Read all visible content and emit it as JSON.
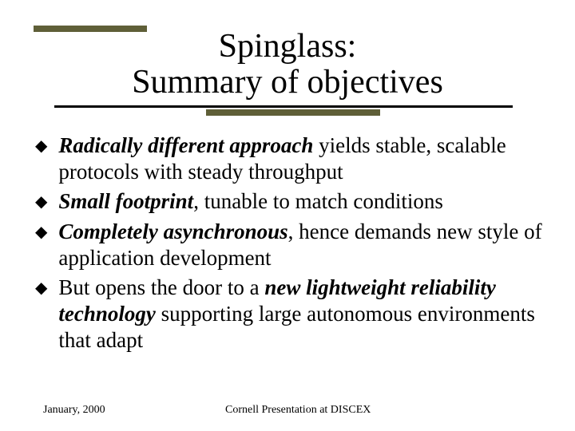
{
  "title": {
    "line1": "Spinglass:",
    "line2": "Summary of objectives"
  },
  "bullets": [
    {
      "segments": [
        {
          "text": "Radically different approach",
          "em": true
        },
        {
          "text": " yields stable, scalable protocols with steady throughput",
          "em": false
        }
      ]
    },
    {
      "segments": [
        {
          "text": "Small footprint",
          "em": true
        },
        {
          "text": ", tunable to match conditions",
          "em": false
        }
      ]
    },
    {
      "segments": [
        {
          "text": "Completely asynchronous",
          "em": true
        },
        {
          "text": ", hence demands new style of application development",
          "em": false
        }
      ]
    },
    {
      "segments": [
        {
          "text": "But opens the door to a ",
          "em": false
        },
        {
          "text": "new lightweight reliability technology",
          "em": true
        },
        {
          "text": " supporting large autonomous environments that adapt",
          "em": false
        }
      ]
    }
  ],
  "footer": {
    "date": "January, 2000",
    "center": "Cornell Presentation at DISCEX"
  },
  "colors": {
    "accent": "#5f5f38",
    "text": "#000000",
    "background": "#ffffff"
  }
}
